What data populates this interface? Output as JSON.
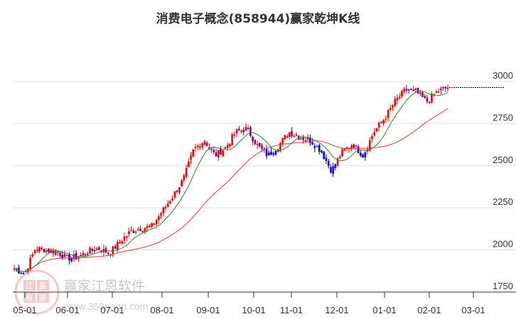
{
  "header": {
    "title": "消费电子概念(858944)赢家乾坤K线"
  },
  "watermark": {
    "brand": "赢家江恩软件",
    "url": "www.360gann.com",
    "logo_chars": [
      "江",
      "赢",
      "恩",
      "家"
    ]
  },
  "colors": {
    "up": "#ff0000",
    "down": "#0000ff",
    "neutral": "#800080",
    "ma_short": "#228b22",
    "ma_long": "#ff3333",
    "grid": "#e0e0e0",
    "axis": "#333333"
  },
  "chart_data": {
    "type": "candlestick",
    "title": "消费电子概念(858944)赢家乾坤K线",
    "xlabel": "",
    "ylabel": "",
    "ylim": [
      1750,
      3060
    ],
    "y_ticks": [
      1750,
      2000,
      2250,
      2500,
      2750,
      3000
    ],
    "x_ticks": [
      "05-01",
      "06-01",
      "07-01",
      "08-01",
      "09-01",
      "10-01",
      "11-01",
      "12-01",
      "01-01",
      "02-01",
      "03-01"
    ],
    "grid": true,
    "last_close_line": 2965,
    "approx_close_series": [
      {
        "x": "04-25",
        "close": 1890
      },
      {
        "x": "05-01",
        "close": 1860
      },
      {
        "x": "05-08",
        "close": 2010
      },
      {
        "x": "05-15",
        "close": 2000
      },
      {
        "x": "05-22",
        "close": 1990
      },
      {
        "x": "05-29",
        "close": 1950
      },
      {
        "x": "06-01",
        "close": 1960
      },
      {
        "x": "06-08",
        "close": 1990
      },
      {
        "x": "06-15",
        "close": 2010
      },
      {
        "x": "06-22",
        "close": 1980
      },
      {
        "x": "07-01",
        "close": 2050
      },
      {
        "x": "07-08",
        "close": 2110
      },
      {
        "x": "07-15",
        "close": 2130
      },
      {
        "x": "07-22",
        "close": 2140
      },
      {
        "x": "08-01",
        "close": 2230
      },
      {
        "x": "08-08",
        "close": 2320
      },
      {
        "x": "08-15",
        "close": 2420
      },
      {
        "x": "08-22",
        "close": 2600
      },
      {
        "x": "09-01",
        "close": 2650
      },
      {
        "x": "09-08",
        "close": 2560
      },
      {
        "x": "09-15",
        "close": 2610
      },
      {
        "x": "09-22",
        "close": 2700
      },
      {
        "x": "10-01",
        "close": 2720
      },
      {
        "x": "10-08",
        "close": 2620
      },
      {
        "x": "10-15",
        "close": 2560
      },
      {
        "x": "10-22",
        "close": 2620
      },
      {
        "x": "11-01",
        "close": 2700
      },
      {
        "x": "11-08",
        "close": 2670
      },
      {
        "x": "11-15",
        "close": 2650
      },
      {
        "x": "11-22",
        "close": 2590
      },
      {
        "x": "12-01",
        "close": 2470
      },
      {
        "x": "12-08",
        "close": 2580
      },
      {
        "x": "12-15",
        "close": 2630
      },
      {
        "x": "12-22",
        "close": 2560
      },
      {
        "x": "01-01",
        "close": 2700
      },
      {
        "x": "01-08",
        "close": 2780
      },
      {
        "x": "01-15",
        "close": 2880
      },
      {
        "x": "01-22",
        "close": 2950
      },
      {
        "x": "02-01",
        "close": 2940
      },
      {
        "x": "02-05",
        "close": 2880
      },
      {
        "x": "02-10",
        "close": 2940
      },
      {
        "x": "02-15",
        "close": 2965
      }
    ],
    "series": [
      {
        "name": "MA-short",
        "color": "#228b22"
      },
      {
        "name": "MA-long",
        "color": "#ff3333"
      }
    ]
  }
}
